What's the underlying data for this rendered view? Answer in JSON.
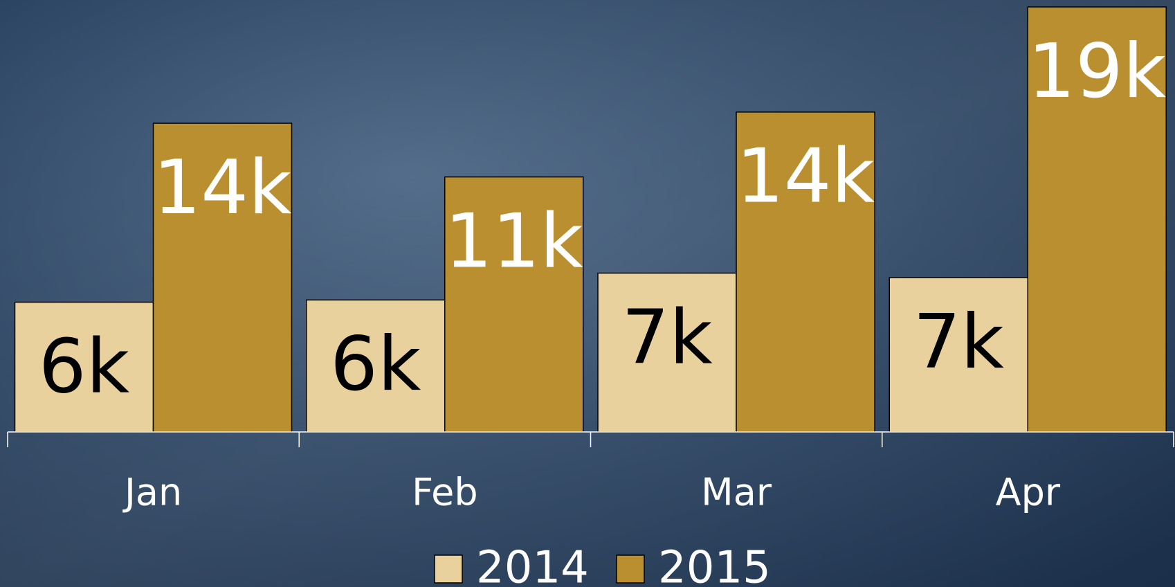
{
  "chart_data": {
    "type": "bar",
    "categories": [
      "Jan",
      "Feb",
      "Mar",
      "Apr"
    ],
    "series": [
      {
        "name": "2014",
        "color": "#e9d19e",
        "values": [
          5800,
          5900,
          7100,
          6900
        ],
        "value_labels": [
          "6k",
          "6k",
          "7k",
          "7k"
        ]
      },
      {
        "name": "2015",
        "color": "#b98f30",
        "values": [
          13800,
          11400,
          14300,
          19000
        ],
        "value_labels": [
          "14k",
          "11k",
          "14k",
          "19k"
        ]
      }
    ],
    "ylim": [
      0,
      19000
    ],
    "legend": "bottom"
  }
}
